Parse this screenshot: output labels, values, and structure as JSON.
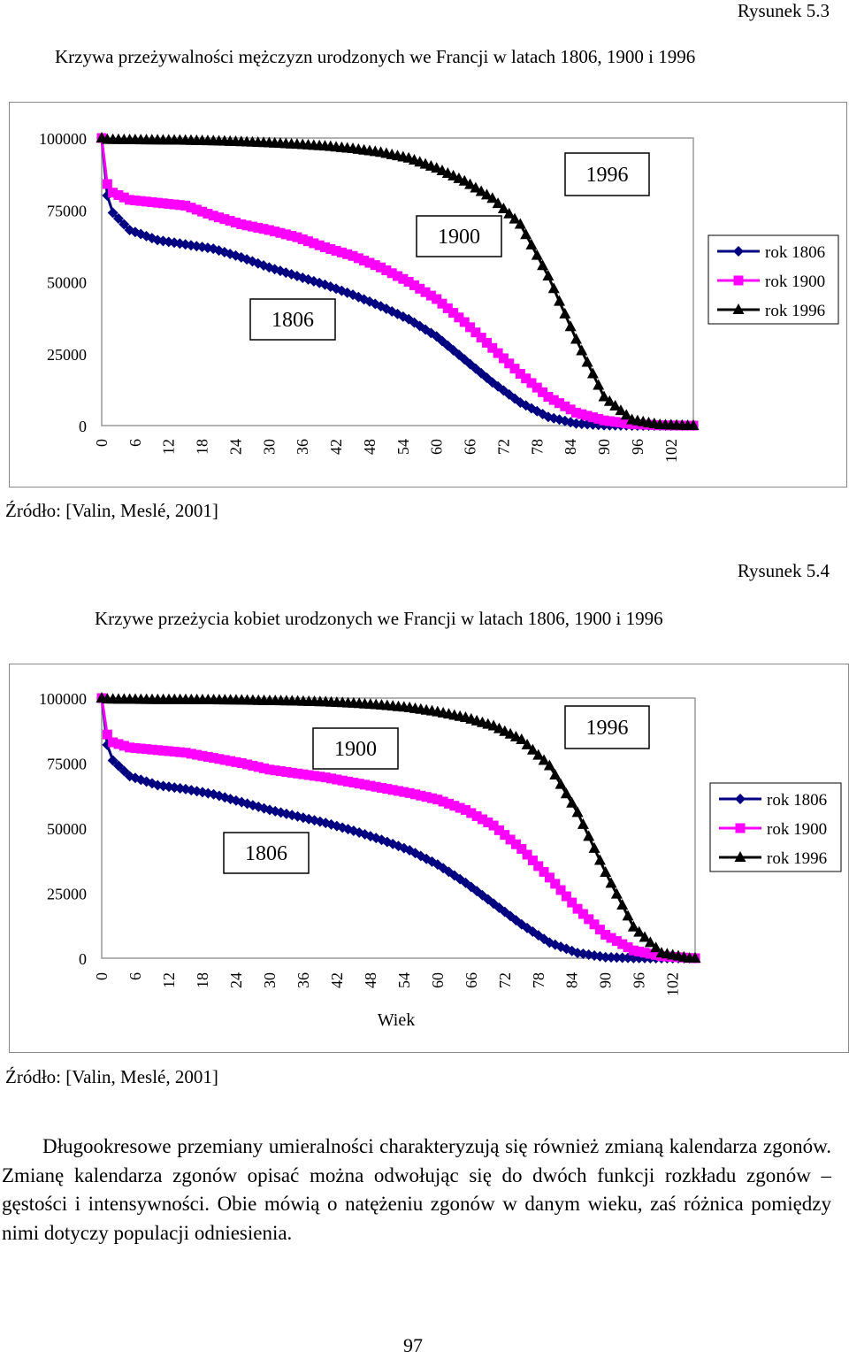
{
  "figures": [
    {
      "label": "Rysunek 5.3",
      "title": "Krzywa przeżywalności mężczyzn urodzonych we Francji w latach 1806, 1900 i 1996",
      "source": "Źródło: [Valin, Meslé, 2001]"
    },
    {
      "label": "Rysunek 5.4",
      "title": "Krzywe przeżycia kobiet urodzonych we Francji w latach 1806, 1900 i 1996",
      "source": "Źródło: [Valin, Meslé, 2001]"
    }
  ],
  "paragraph": "Długookresowe przemiany umieralności charakteryzują się również zmianą kalendarza zgonów. Zmianę kalendarza zgonów opisać można odwołując się do dwóch funkcji rozkładu zgonów – gęstości i intensywności. Obie mówią o natężeniu zgonów w danym wieku, zaś różnica pomiędzy nimi dotyczy populacji odniesienia.",
  "page_number": "97",
  "colors": {
    "rok_1806": "#000080",
    "rok_1900": "#ff00ff",
    "rok_1996": "#000000"
  },
  "chart_data": [
    {
      "type": "line",
      "title": "",
      "xlabel": "",
      "ylabel": "",
      "x_ticks": [
        "0",
        "6",
        "12",
        "18",
        "24",
        "30",
        "36",
        "42",
        "48",
        "54",
        "60",
        "66",
        "72",
        "78",
        "84",
        "90",
        "96",
        "102"
      ],
      "y_ticks": [
        "0",
        "25000",
        "50000",
        "75000",
        "100000"
      ],
      "xlim": [
        0,
        106
      ],
      "ylim": [
        0,
        100000
      ],
      "grid": false,
      "legend_position": "right",
      "annotations": [
        "1806",
        "1900",
        "1996"
      ],
      "series": [
        {
          "name": "rok 1806",
          "marker": "diamond",
          "color": "#000080",
          "x": [
            0,
            1,
            2,
            5,
            10,
            15,
            20,
            25,
            30,
            35,
            40,
            45,
            50,
            55,
            60,
            65,
            70,
            75,
            80,
            85,
            90,
            95,
            100,
            105,
            106
          ],
          "y": [
            100000,
            80000,
            74000,
            68000,
            64500,
            63000,
            61500,
            58500,
            55000,
            52000,
            49000,
            45500,
            41500,
            37000,
            31000,
            23000,
            15000,
            8000,
            3000,
            700,
            100,
            0,
            0,
            0,
            0
          ]
        },
        {
          "name": "rok 1900",
          "marker": "square",
          "color": "#ff00ff",
          "x": [
            0,
            1,
            2,
            5,
            10,
            15,
            20,
            25,
            30,
            35,
            40,
            45,
            50,
            55,
            60,
            65,
            70,
            75,
            80,
            85,
            90,
            95,
            100,
            105,
            106
          ],
          "y": [
            100000,
            84000,
            81000,
            78500,
            77500,
            76500,
            73000,
            70000,
            68000,
            65500,
            62000,
            59000,
            55000,
            50000,
            44000,
            36000,
            27000,
            18000,
            10000,
            4500,
            1800,
            500,
            100,
            0,
            0
          ]
        },
        {
          "name": "rok 1996",
          "marker": "triangle",
          "color": "#000000",
          "x": [
            0,
            1,
            5,
            10,
            15,
            20,
            25,
            30,
            35,
            40,
            45,
            50,
            55,
            60,
            65,
            70,
            75,
            80,
            85,
            90,
            95,
            100,
            105,
            106
          ],
          "y": [
            100000,
            99500,
            99400,
            99300,
            99200,
            99000,
            98700,
            98300,
            97800,
            97200,
            96300,
            95000,
            93000,
            89500,
            85000,
            79000,
            70000,
            52000,
            30000,
            10000,
            2000,
            300,
            0,
            0
          ]
        }
      ]
    },
    {
      "type": "line",
      "title": "",
      "xlabel": "Wiek",
      "ylabel": "",
      "x_ticks": [
        "0",
        "6",
        "12",
        "18",
        "24",
        "30",
        "36",
        "42",
        "48",
        "54",
        "60",
        "66",
        "72",
        "78",
        "84",
        "90",
        "96",
        "102"
      ],
      "y_ticks": [
        "0",
        "25000",
        "50000",
        "75000",
        "100000"
      ],
      "xlim": [
        0,
        106
      ],
      "ylim": [
        0,
        100000
      ],
      "grid": false,
      "legend_position": "right",
      "annotations": [
        "1806",
        "1900",
        "1996"
      ],
      "series": [
        {
          "name": "rok 1806",
          "marker": "diamond",
          "color": "#000080",
          "x": [
            0,
            1,
            2,
            5,
            10,
            15,
            20,
            25,
            30,
            35,
            40,
            45,
            50,
            55,
            60,
            65,
            70,
            75,
            80,
            85,
            90,
            95,
            100,
            105,
            106
          ],
          "y": [
            100000,
            82000,
            76000,
            70000,
            66500,
            65000,
            63000,
            60000,
            57000,
            54500,
            52000,
            49000,
            45500,
            41500,
            36000,
            29000,
            21000,
            13000,
            6000,
            2000,
            400,
            50,
            0,
            0,
            0
          ]
        },
        {
          "name": "rok 1900",
          "marker": "square",
          "color": "#ff00ff",
          "x": [
            0,
            1,
            2,
            5,
            10,
            15,
            20,
            25,
            30,
            35,
            40,
            45,
            50,
            55,
            60,
            65,
            70,
            75,
            80,
            85,
            90,
            95,
            100,
            105,
            106
          ],
          "y": [
            100000,
            86000,
            83000,
            81000,
            80000,
            79000,
            77000,
            75000,
            72500,
            71000,
            69500,
            67500,
            65500,
            63500,
            61000,
            57000,
            51000,
            42000,
            31000,
            19000,
            9000,
            3000,
            800,
            100,
            0
          ]
        },
        {
          "name": "rok 1996",
          "marker": "triangle",
          "color": "#000000",
          "x": [
            0,
            1,
            5,
            10,
            15,
            20,
            25,
            30,
            35,
            40,
            45,
            50,
            55,
            60,
            65,
            70,
            75,
            80,
            85,
            90,
            95,
            100,
            105,
            106
          ],
          "y": [
            100000,
            99600,
            99500,
            99400,
            99400,
            99300,
            99200,
            99000,
            98800,
            98500,
            98000,
            97300,
            96300,
            94700,
            92500,
            89300,
            84000,
            74000,
            56000,
            33000,
            12000,
            2000,
            0,
            0
          ]
        }
      ]
    }
  ]
}
